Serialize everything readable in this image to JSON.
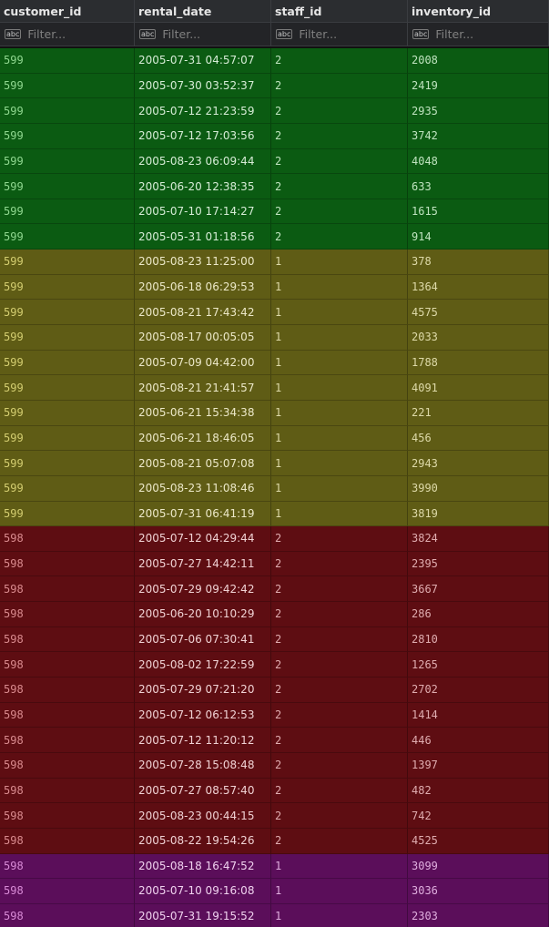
{
  "columns": [
    {
      "label": "customer_id",
      "filter_placeholder": "Filter..."
    },
    {
      "label": "rental_date",
      "filter_placeholder": "Filter..."
    },
    {
      "label": "staff_id",
      "filter_placeholder": "Filter..."
    },
    {
      "label": "inventory_id",
      "filter_placeholder": "Filter..."
    }
  ],
  "filter_icon_text": "abc",
  "groups": [
    {
      "colors": {
        "bg": "#0b5b12",
        "id_text": "#8fd78f",
        "text": "#d6ecd6",
        "num_text": "#bfe3bf"
      },
      "rows": [
        [
          "599",
          "2005-07-31 04:57:07",
          "2",
          "2008"
        ],
        [
          "599",
          "2005-07-30 03:52:37",
          "2",
          "2419"
        ],
        [
          "599",
          "2005-07-12 21:23:59",
          "2",
          "2935"
        ],
        [
          "599",
          "2005-07-12 17:03:56",
          "2",
          "3742"
        ],
        [
          "599",
          "2005-08-23 06:09:44",
          "2",
          "4048"
        ],
        [
          "599",
          "2005-06-20 12:38:35",
          "2",
          "633"
        ],
        [
          "599",
          "2005-07-10 17:14:27",
          "2",
          "1615"
        ],
        [
          "599",
          "2005-05-31 01:18:56",
          "2",
          "914"
        ]
      ]
    },
    {
      "colors": {
        "bg": "#5f5c15",
        "id_text": "#d3cd70",
        "text": "#ece8c8",
        "num_text": "#ddd9a8"
      },
      "rows": [
        [
          "599",
          "2005-08-23 11:25:00",
          "1",
          "378"
        ],
        [
          "599",
          "2005-06-18 06:29:53",
          "1",
          "1364"
        ],
        [
          "599",
          "2005-08-21 17:43:42",
          "1",
          "4575"
        ],
        [
          "599",
          "2005-08-17 00:05:05",
          "1",
          "2033"
        ],
        [
          "599",
          "2005-07-09 04:42:00",
          "1",
          "1788"
        ],
        [
          "599",
          "2005-08-21 21:41:57",
          "1",
          "4091"
        ],
        [
          "599",
          "2005-06-21 15:34:38",
          "1",
          "221"
        ],
        [
          "599",
          "2005-06-21 18:46:05",
          "1",
          "456"
        ],
        [
          "599",
          "2005-08-21 05:07:08",
          "1",
          "2943"
        ],
        [
          "599",
          "2005-08-23 11:08:46",
          "1",
          "3990"
        ],
        [
          "599",
          "2005-07-31 06:41:19",
          "1",
          "3819"
        ]
      ]
    },
    {
      "colors": {
        "bg": "#5e0d12",
        "id_text": "#d98a8e",
        "text": "#f0d2d4",
        "num_text": "#dfacaf"
      },
      "rows": [
        [
          "598",
          "2005-07-12 04:29:44",
          "2",
          "3824"
        ],
        [
          "598",
          "2005-07-27 14:42:11",
          "2",
          "2395"
        ],
        [
          "598",
          "2005-07-29 09:42:42",
          "2",
          "3667"
        ],
        [
          "598",
          "2005-06-20 10:10:29",
          "2",
          "286"
        ],
        [
          "598",
          "2005-07-06 07:30:41",
          "2",
          "2810"
        ],
        [
          "598",
          "2005-08-02 17:22:59",
          "2",
          "1265"
        ],
        [
          "598",
          "2005-07-29 07:21:20",
          "2",
          "2702"
        ],
        [
          "598",
          "2005-07-12 06:12:53",
          "2",
          "1414"
        ],
        [
          "598",
          "2005-07-12 11:20:12",
          "2",
          "446"
        ],
        [
          "598",
          "2005-07-28 15:08:48",
          "2",
          "1397"
        ],
        [
          "598",
          "2005-07-27 08:57:40",
          "2",
          "482"
        ],
        [
          "598",
          "2005-08-23 00:44:15",
          "2",
          "742"
        ],
        [
          "598",
          "2005-08-22 19:54:26",
          "2",
          "4525"
        ]
      ]
    },
    {
      "colors": {
        "bg": "#5b0e5a",
        "id_text": "#d88ad6",
        "text": "#f0d2ef",
        "num_text": "#dfaede"
      },
      "rows": [
        [
          "598",
          "2005-08-18 16:47:52",
          "1",
          "3099"
        ],
        [
          "598",
          "2005-07-10 09:16:08",
          "1",
          "3036"
        ],
        [
          "598",
          "2005-07-31 19:15:52",
          "1",
          "2303"
        ]
      ]
    }
  ]
}
